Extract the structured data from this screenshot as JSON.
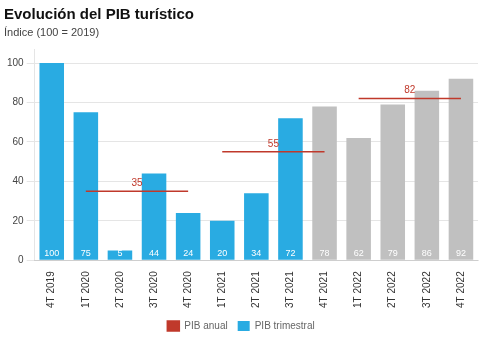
{
  "chart_data": {
    "type": "bar",
    "title": "Evolución del PIB turístico",
    "subtitle": "Índice (100 = 2019)",
    "categories": [
      "4T 2019",
      "1T 2020",
      "2T 2020",
      "3T 2020",
      "4T 2020",
      "1T 2021",
      "2T 2021",
      "3T 2021",
      "4T 2021",
      "1T 2022",
      "2T 2022",
      "3T 2022",
      "4T 2022"
    ],
    "series": [
      {
        "name": "PIB trimestral",
        "type": "bar",
        "colors": [
          "#29abe2",
          "#29abe2",
          "#29abe2",
          "#29abe2",
          "#29abe2",
          "#29abe2",
          "#29abe2",
          "#29abe2",
          "#c0c0c0",
          "#c0c0c0",
          "#c0c0c0",
          "#c0c0c0",
          "#c0c0c0"
        ],
        "values": [
          100,
          75,
          5,
          44,
          24,
          20,
          34,
          72,
          78,
          62,
          79,
          86,
          92
        ],
        "data_labels": true
      },
      {
        "name": "PIB anual",
        "type": "line",
        "color": "#c0392b",
        "values": [
          null,
          35,
          35,
          35,
          35,
          55,
          55,
          55,
          55,
          82,
          82,
          82,
          82
        ],
        "data_labels": true
      }
    ],
    "ylim": [
      0,
      107
    ],
    "yticks": [
      0,
      20,
      40,
      60,
      80,
      100
    ],
    "grid": true,
    "legend": "bottom"
  }
}
